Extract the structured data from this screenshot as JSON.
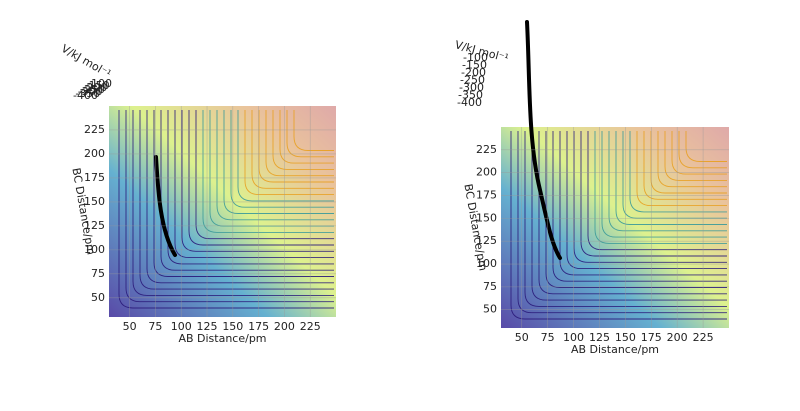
{
  "chart_data": [
    {
      "type": "surface3d",
      "xlabel": "AB Distance/pm",
      "ylabel": "BC Distance/pm",
      "zlabel": "V/kJ mol⁻¹",
      "xlim": [
        30,
        250
      ],
      "ylim": [
        30,
        250
      ],
      "zlim": [
        -400,
        -100
      ],
      "xticks": [
        50,
        75,
        100,
        125,
        150,
        175,
        200,
        225
      ],
      "yticks": [
        50,
        75,
        100,
        125,
        150,
        175,
        200,
        225
      ],
      "zticks": [
        -100,
        -150,
        -200,
        -250,
        -300,
        -350,
        -400
      ]
    },
    {
      "type": "surface3d",
      "xlabel": "AB Distance/pm",
      "ylabel": "BC Distance/pm",
      "zlabel": "V/kJ mol⁻¹",
      "xlim": [
        30,
        250
      ],
      "ylim": [
        30,
        250
      ],
      "zlim": [
        -400,
        -100
      ],
      "xticks": [
        50,
        75,
        100,
        125,
        150,
        175,
        200,
        225
      ],
      "yticks": [
        50,
        75,
        100,
        125,
        150,
        175,
        200,
        225
      ],
      "zticks": [
        -100,
        -150,
        -200,
        -250,
        -300,
        -350,
        -400
      ]
    }
  ]
}
